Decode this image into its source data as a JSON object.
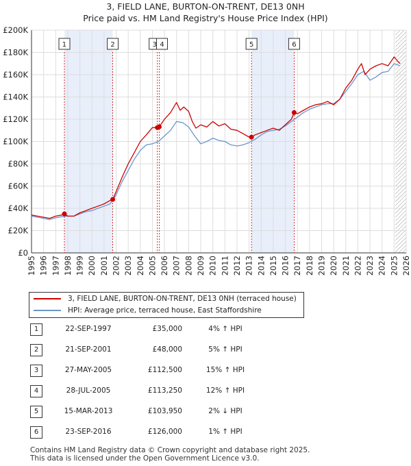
{
  "header": {
    "title": "3, FIELD LANE, BURTON-ON-TRENT, DE13 0NH",
    "subtitle": "Price paid vs. HM Land Registry's House Price Index (HPI)"
  },
  "colors": {
    "property_line": "#cc0000",
    "hpi_line": "#6a96cc",
    "highlight_band": "#e8eefa",
    "marker_box": "#333333",
    "hatch": "#999999"
  },
  "chart_data": {
    "type": "line",
    "title": "3, FIELD LANE, BURTON-ON-TRENT, DE13 0NH",
    "subtitle": "Price paid vs. HM Land Registry's House Price Index (HPI)",
    "xlabel": "",
    "ylabel": "",
    "xlim": [
      1995,
      2026
    ],
    "ylim": [
      0,
      200000
    ],
    "x_ticks": [
      "1995",
      "1996",
      "1997",
      "1998",
      "1999",
      "2000",
      "2001",
      "2002",
      "2003",
      "2004",
      "2005",
      "2006",
      "2007",
      "2008",
      "2009",
      "2010",
      "2011",
      "2012",
      "2013",
      "2014",
      "2015",
      "2016",
      "2017",
      "2018",
      "2019",
      "2020",
      "2021",
      "2022",
      "2023",
      "2024",
      "2025",
      "2026"
    ],
    "y_ticks": [
      {
        "value": 0,
        "label": "£0"
      },
      {
        "value": 20000,
        "label": "£20K"
      },
      {
        "value": 40000,
        "label": "£40K"
      },
      {
        "value": 60000,
        "label": "£60K"
      },
      {
        "value": 80000,
        "label": "£80K"
      },
      {
        "value": 100000,
        "label": "£100K"
      },
      {
        "value": 120000,
        "label": "£120K"
      },
      {
        "value": 140000,
        "label": "£140K"
      },
      {
        "value": 160000,
        "label": "£160K"
      },
      {
        "value": 180000,
        "label": "£180K"
      },
      {
        "value": 200000,
        "label": "£200K"
      }
    ],
    "grid": true,
    "shaded_periods": [
      [
        1997.72,
        2001.72
      ],
      [
        2013.2,
        2016.73
      ]
    ],
    "future_hatch_from": 2025.1,
    "legend_position": "below",
    "series": [
      {
        "name": "3, FIELD LANE, BURTON-ON-TRENT, DE13 0NH (terraced house)",
        "color": "#cc0000",
        "x": [
          1995,
          1995.5,
          1996,
          1996.5,
          1997,
          1997.5,
          1997.72,
          1998,
          1998.5,
          1999,
          1999.5,
          2000,
          2000.5,
          2001,
          2001.5,
          2001.72,
          2002,
          2002.5,
          2003,
          2003.5,
          2004,
          2004.5,
          2005,
          2005.41,
          2005.57,
          2006,
          2006.5,
          2007,
          2007.3,
          2007.6,
          2008,
          2008.3,
          2008.6,
          2009,
          2009.5,
          2010,
          2010.5,
          2011,
          2011.5,
          2012,
          2012.5,
          2013,
          2013.2,
          2013.5,
          2014,
          2014.5,
          2015,
          2015.5,
          2016,
          2016.5,
          2016.73,
          2017,
          2017.5,
          2018,
          2018.5,
          2019,
          2019.5,
          2020,
          2020.5,
          2021,
          2021.5,
          2022,
          2022.3,
          2022.6,
          2023,
          2023.5,
          2024,
          2024.5,
          2025,
          2025.3,
          2025.5
        ],
        "y": [
          34000,
          33000,
          32000,
          31000,
          33000,
          34000,
          35000,
          33000,
          33000,
          36000,
          38000,
          40000,
          42000,
          44000,
          47000,
          48000,
          55000,
          68000,
          80000,
          90000,
          100000,
          106000,
          112500,
          112500,
          113250,
          120000,
          126000,
          135000,
          128000,
          131000,
          127000,
          118000,
          112000,
          115000,
          113000,
          118000,
          114000,
          116000,
          111000,
          110000,
          107000,
          104000,
          103950,
          106000,
          108000,
          110000,
          112000,
          110000,
          115000,
          120000,
          126000,
          125000,
          128000,
          131000,
          133000,
          134000,
          136000,
          133000,
          138000,
          148000,
          155000,
          165000,
          170000,
          160000,
          165000,
          168000,
          170000,
          168000,
          176000,
          172000,
          170000
        ]
      },
      {
        "name": "HPI: Average price, terraced house, East Staffordshire",
        "color": "#6a96cc",
        "x": [
          1995,
          1995.5,
          1996,
          1996.5,
          1997,
          1997.5,
          1998,
          1998.5,
          1999,
          1999.5,
          2000,
          2000.5,
          2001,
          2001.5,
          2002,
          2002.5,
          2003,
          2003.5,
          2004,
          2004.5,
          2005,
          2005.5,
          2006,
          2006.5,
          2007,
          2007.5,
          2008,
          2008.5,
          2009,
          2009.5,
          2010,
          2010.5,
          2011,
          2011.5,
          2012,
          2012.5,
          2013,
          2013.5,
          2014,
          2014.5,
          2015,
          2015.5,
          2016,
          2016.5,
          2017,
          2017.5,
          2018,
          2018.5,
          2019,
          2019.5,
          2020,
          2020.5,
          2021,
          2021.5,
          2022,
          2022.5,
          2023,
          2023.5,
          2024,
          2024.5,
          2025,
          2025.5
        ],
        "y": [
          33000,
          32000,
          31000,
          30000,
          31500,
          32500,
          33000,
          33000,
          35000,
          37000,
          38000,
          40000,
          42000,
          44000,
          52000,
          64000,
          74000,
          84000,
          92000,
          97000,
          98000,
          100000,
          105000,
          110000,
          118000,
          117000,
          113000,
          105000,
          98000,
          100000,
          103000,
          101000,
          100000,
          97000,
          96000,
          97000,
          99000,
          102000,
          106000,
          109000,
          110000,
          111000,
          114000,
          118000,
          122000,
          126000,
          129000,
          131000,
          133000,
          134000,
          134000,
          138000,
          145000,
          152000,
          160000,
          163000,
          155000,
          158000,
          162000,
          163000,
          170000,
          168000
        ]
      }
    ],
    "sales": [
      {
        "id": "1",
        "x": 1997.72,
        "y": 35000
      },
      {
        "id": "2",
        "x": 2001.72,
        "y": 48000
      },
      {
        "id": "3",
        "x": 2005.41,
        "y": 112500
      },
      {
        "id": "4",
        "x": 2005.57,
        "y": 113250
      },
      {
        "id": "5",
        "x": 2013.2,
        "y": 103950
      },
      {
        "id": "6",
        "x": 2016.73,
        "y": 126000
      }
    ]
  },
  "legend": {
    "items": [
      {
        "label": "3, FIELD LANE, BURTON-ON-TRENT, DE13 0NH (terraced house)",
        "color": "#cc0000"
      },
      {
        "label": "HPI: Average price, terraced house, East Staffordshire",
        "color": "#6a96cc"
      }
    ]
  },
  "sales_table": [
    {
      "num": "1",
      "date": "22-SEP-1997",
      "price": "£35,000",
      "hpi": "4% ↑ HPI"
    },
    {
      "num": "2",
      "date": "21-SEP-2001",
      "price": "£48,000",
      "hpi": "5% ↑ HPI"
    },
    {
      "num": "3",
      "date": "27-MAY-2005",
      "price": "£112,500",
      "hpi": "15% ↑ HPI"
    },
    {
      "num": "4",
      "date": "28-JUL-2005",
      "price": "£113,250",
      "hpi": "12% ↑ HPI"
    },
    {
      "num": "5",
      "date": "15-MAR-2013",
      "price": "£103,950",
      "hpi": "2% ↓ HPI"
    },
    {
      "num": "6",
      "date": "23-SEP-2016",
      "price": "£126,000",
      "hpi": "1% ↑ HPI"
    }
  ],
  "footer": {
    "line1": "Contains HM Land Registry data © Crown copyright and database right 2025.",
    "line2": "This data is licensed under the Open Government Licence v3.0."
  }
}
